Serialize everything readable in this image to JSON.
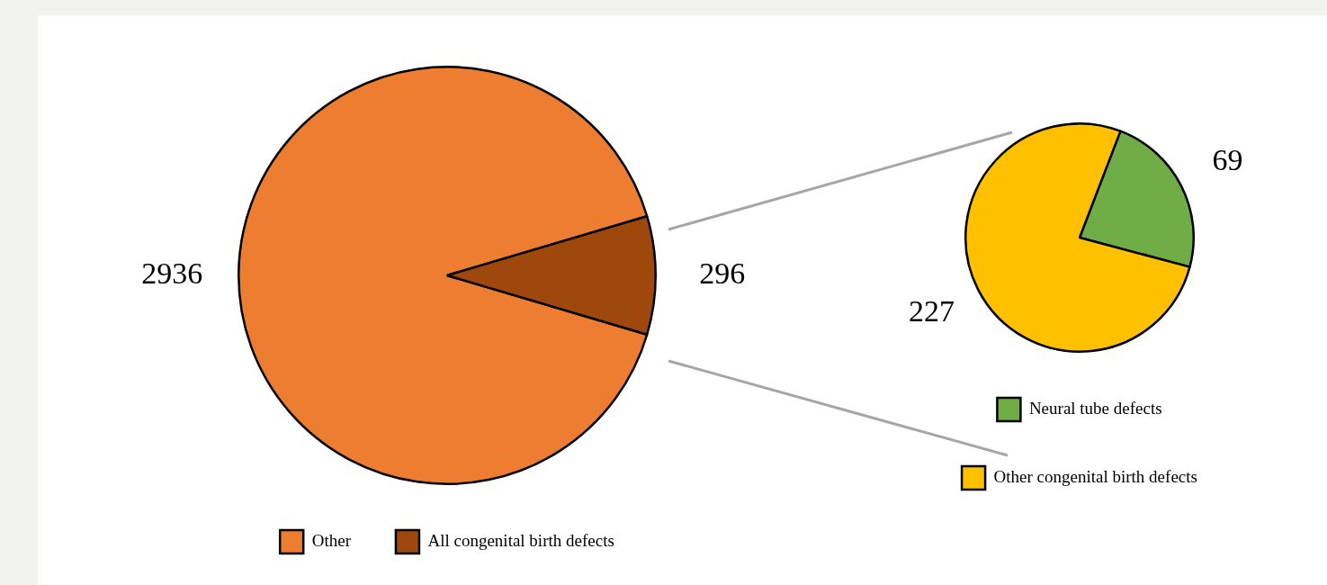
{
  "chart_data": [
    {
      "type": "pie",
      "categories": [
        "Other",
        "All congenital birth defects"
      ],
      "values": [
        2936,
        296
      ],
      "colors": [
        "#ed7d31",
        "#9e480e"
      ],
      "data_labels": true,
      "legend": "bottom"
    },
    {
      "type": "pie",
      "categories": [
        "Neural tube defects",
        "Other congenital birth defects"
      ],
      "values": [
        69,
        227
      ],
      "colors": [
        "#70ad47",
        "#ffc000"
      ],
      "data_labels": true,
      "legend": "bottom"
    }
  ]
}
